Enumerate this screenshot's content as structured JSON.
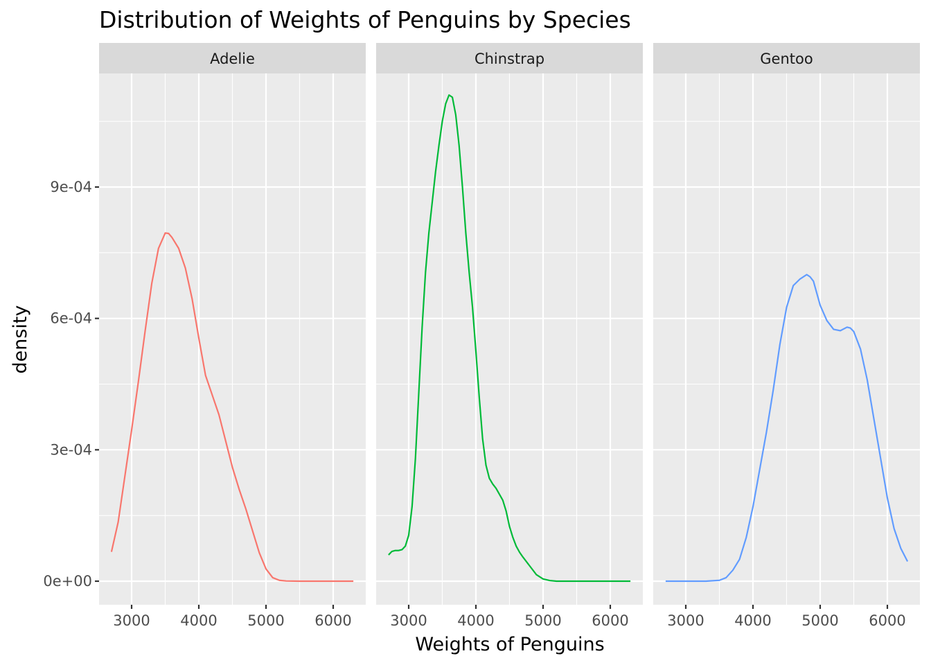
{
  "chart_data": {
    "type": "line",
    "title": "Distribution of Weights of Penguins by Species",
    "xlabel": "Weights of Penguins",
    "ylabel": "density",
    "xlim": [
      2700,
      6300
    ],
    "ylim": [
      0,
      0.00115
    ],
    "x_ticks": [
      3000,
      4000,
      5000,
      6000
    ],
    "x_tick_labels": [
      "3000",
      "4000",
      "5000",
      "6000"
    ],
    "y_ticks": [
      0,
      0.0003,
      0.0006,
      0.0009
    ],
    "y_tick_labels": [
      "0e+00",
      "3e-04",
      "6e-04",
      "9e-04"
    ],
    "grid": true,
    "facets": [
      {
        "label": "Adelie",
        "color": "#F8766D",
        "x": [
          2700,
          2800,
          2900,
          3000,
          3100,
          3200,
          3300,
          3400,
          3500,
          3550,
          3600,
          3700,
          3800,
          3900,
          4000,
          4100,
          4200,
          4300,
          4400,
          4500,
          4600,
          4700,
          4800,
          4900,
          5000,
          5100,
          5200,
          5300,
          5500,
          5800,
          6300
        ],
        "y": [
          6.7e-05,
          0.000135,
          0.00024,
          0.000345,
          0.000455,
          0.00057,
          0.00068,
          0.00076,
          0.000795,
          0.000794,
          0.000785,
          0.00076,
          0.000715,
          0.000645,
          0.000555,
          0.00047,
          0.000425,
          0.00038,
          0.00032,
          0.00026,
          0.00021,
          0.000165,
          0.000115,
          6.5e-05,
          2.8e-05,
          8e-06,
          2e-06,
          5e-07,
          0,
          0,
          0
        ]
      },
      {
        "label": "Chinstrap",
        "color": "#00BA38",
        "x": [
          2700,
          2750,
          2800,
          2850,
          2900,
          2950,
          3000,
          3050,
          3100,
          3150,
          3200,
          3250,
          3300,
          3350,
          3400,
          3450,
          3500,
          3550,
          3600,
          3650,
          3700,
          3750,
          3800,
          3850,
          3900,
          3950,
          4000,
          4050,
          4100,
          4150,
          4200,
          4250,
          4300,
          4400,
          4450,
          4500,
          4550,
          4600,
          4650,
          4700,
          4800,
          4900,
          5000,
          5100,
          5200,
          5400,
          5800,
          6300
        ],
        "y": [
          6e-05,
          6.8e-05,
          7e-05,
          7e-05,
          7.2e-05,
          8e-05,
          0.000105,
          0.00017,
          0.00028,
          0.00043,
          0.00058,
          0.000705,
          0.000795,
          0.000865,
          0.000935,
          0.000995,
          0.00105,
          0.00109,
          0.00111,
          0.001105,
          0.001065,
          0.000995,
          0.0009,
          0.000795,
          0.000705,
          0.000625,
          0.000525,
          0.00042,
          0.000325,
          0.000265,
          0.000235,
          0.000222,
          0.000212,
          0.000185,
          0.00016,
          0.000125,
          0.0001,
          8e-05,
          6.6e-05,
          5.5e-05,
          3.5e-05,
          1.5e-05,
          5e-06,
          1.5e-06,
          0,
          0,
          0,
          0
        ]
      },
      {
        "label": "Gentoo",
        "color": "#619CFF",
        "x": [
          2700,
          3000,
          3300,
          3500,
          3600,
          3700,
          3800,
          3900,
          4000,
          4100,
          4200,
          4300,
          4400,
          4500,
          4600,
          4700,
          4800,
          4850,
          4900,
          5000,
          5100,
          5200,
          5300,
          5400,
          5450,
          5500,
          5600,
          5700,
          5800,
          5900,
          6000,
          6100,
          6200,
          6300
        ],
        "y": [
          0,
          0,
          0,
          2e-06,
          8e-06,
          2.5e-05,
          5e-05,
          0.0001,
          0.00017,
          0.000255,
          0.00034,
          0.000435,
          0.00054,
          0.000625,
          0.000675,
          0.00069,
          0.0007,
          0.000695,
          0.000685,
          0.00063,
          0.000595,
          0.000575,
          0.000572,
          0.00058,
          0.000578,
          0.00057,
          0.00053,
          0.00046,
          0.00037,
          0.00028,
          0.00019,
          0.00012,
          7.5e-05,
          4.5e-05
        ]
      }
    ]
  }
}
